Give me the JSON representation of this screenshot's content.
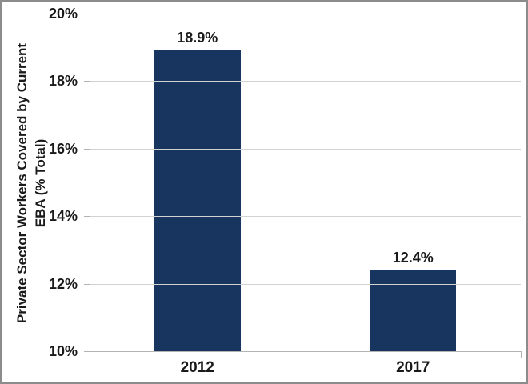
{
  "chart_data": {
    "type": "bar",
    "categories": [
      "2012",
      "2017"
    ],
    "values": [
      18.9,
      12.4
    ],
    "value_labels": [
      "18.9%",
      "12.4%"
    ],
    "title": "",
    "xlabel": "",
    "ylabel_lines": [
      "Private Sector Workers Covered by Current",
      "EBA (% Total)"
    ],
    "ylim": [
      10,
      20
    ],
    "ytick_step": 2,
    "ytick_labels": [
      "20%",
      "18%",
      "16%",
      "14%",
      "12%",
      "10%"
    ],
    "grid": "horizontal-only",
    "legend": "none",
    "bar_color": "#17355E"
  },
  "colors": {
    "bar": "#17355E",
    "gridline": "#D2D2D2",
    "axis": "#B3B3B3",
    "text": "#1A1A1A",
    "frame_border": "#8C8C8C",
    "background": "#FFFFFF"
  }
}
